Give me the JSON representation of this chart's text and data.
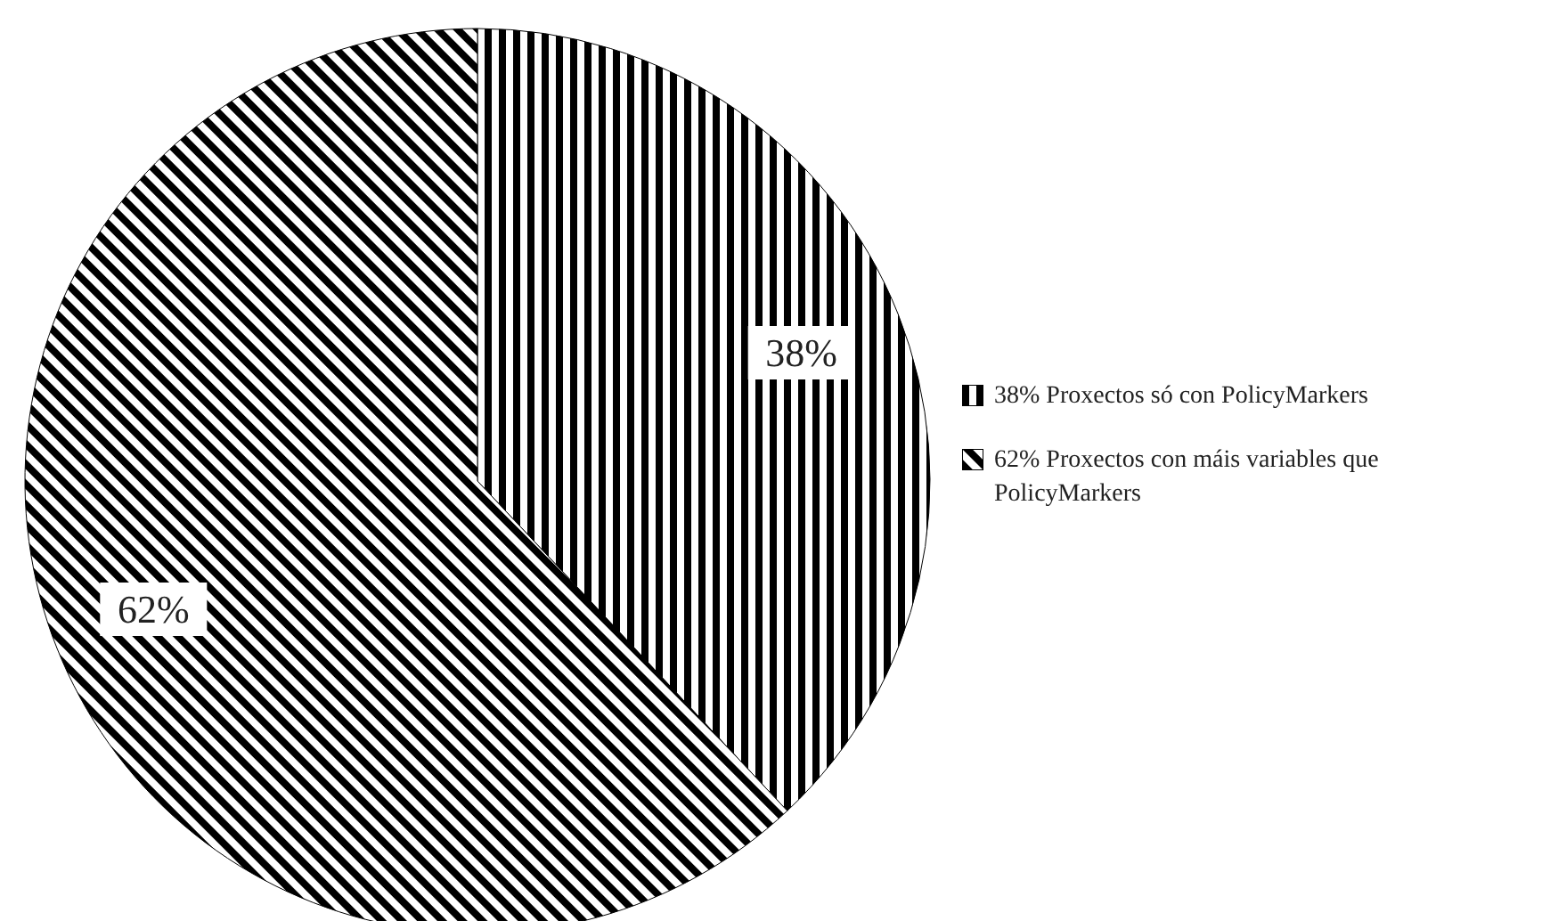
{
  "chart_data": {
    "type": "pie",
    "categories": [
      "Proxectos só con PolicyMarkers",
      "Proxectos con máis variables que PolicyMarkers"
    ],
    "values": [
      38,
      62
    ],
    "value_labels": [
      "38%",
      "62%"
    ],
    "colors": [
      "#000000",
      "#000000"
    ],
    "legend": "right"
  }
}
